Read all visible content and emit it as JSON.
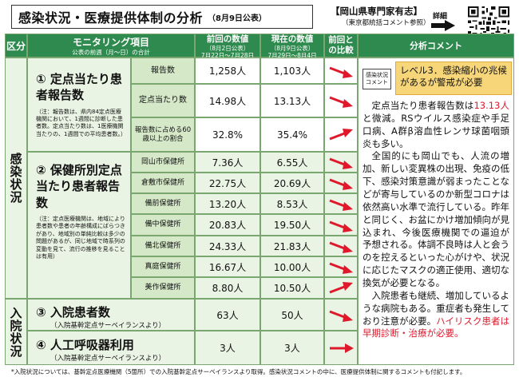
{
  "header": {
    "title": "感染状況・医療提供体制の分析",
    "date_note": "（8月9日公表）",
    "source_line1": "【岡山県専門家有志】",
    "source_line2": "（東京都統括コメント参照）",
    "detail_label": "詳細"
  },
  "columns": {
    "category": "区分",
    "item": "モニタリング項目",
    "item_sub": "公表の前週（月～日）の合計",
    "prev": "前回の数値",
    "prev_sub1": "（8月2日公表）",
    "prev_sub2": "7月22日～7月28日",
    "curr": "現在の数値",
    "curr_sub1": "（8月9日公表）",
    "curr_sub2": "7月29日～8月4日",
    "compare": "前回との比較",
    "comment": "分析コメント"
  },
  "sections": {
    "infection": "感染状況",
    "hospital": "入院状況"
  },
  "items": {
    "item1_title": "① 定点当たり患者報告数",
    "item1_note": "（注：報告数は、県内84定点医療機関において、1週間に診断した患者数。定点当たり数は、1医療機関当たりの、1週間での平均患者数。）",
    "item2_title": "② 保健所別定点当たり患者報告数",
    "item2_note": "（注：定点医療機関は、地域により患者数や患者の年齢構成にばらつきがあり、地域別の単純比較は多少の問題があるが、同じ地域で時系列の変動を見て、流行の推移を見ることは有用）",
    "item3_title": "③ 入院患者数",
    "item3_note": "（入院基幹定点サーベイランスより）",
    "item4_title": "④ 人工呼吸器利用",
    "item4_note": "（入院基幹定点サーベイランスより）"
  },
  "rows1": [
    {
      "label": "報告数",
      "prev": "1,258人",
      "curr": "1,103人",
      "trend": "down"
    },
    {
      "label": "定点当たり数",
      "prev": "14.98人",
      "curr": "13.13人",
      "trend": "down"
    },
    {
      "label": "報告数に占める60歳以上の割合",
      "prev": "32.8%",
      "curr": "35.4%",
      "trend": "up"
    }
  ],
  "rows2": [
    {
      "label": "岡山市保健所",
      "prev": "7.36人",
      "curr": "6.55人",
      "trend": "down"
    },
    {
      "label": "倉敷市保健所",
      "prev": "22.75人",
      "curr": "20.69人",
      "trend": "down"
    },
    {
      "label": "備前保健所",
      "prev": "13.20人",
      "curr": "8.53人",
      "trend": "down"
    },
    {
      "label": "備中保健所",
      "prev": "20.83人",
      "curr": "19.50人",
      "trend": "down"
    },
    {
      "label": "備北保健所",
      "prev": "24.33人",
      "curr": "21.83人",
      "trend": "down"
    },
    {
      "label": "真庭保健所",
      "prev": "16.67人",
      "curr": "10.00人",
      "trend": "down"
    },
    {
      "label": "美作保健所",
      "prev": "8.80人",
      "curr": "10.50人",
      "trend": "up"
    }
  ],
  "row3": {
    "prev": "63人",
    "curr": "50人",
    "trend": "down"
  },
  "row4": {
    "prev": "3人",
    "curr": "3人",
    "trend": "flat"
  },
  "analysis": {
    "level_tag": "感染状況コメント",
    "level_text": "レベル3．感染縮小の兆候があるが警戒が必要",
    "p1_a": "定点当たり患者報告数は",
    "p1_red": "13.13人",
    "p1_b": "と微減。RSウイルス感染症や手足口病、A群β溶血性レンサ球菌咽頭炎も多い。",
    "p2": "全国的にも岡山でも、人流の増加、新しい変異株の出現、免疫の低下、感染対策意識が弱まったことなどが寄与しているのか新型コロナは依然高い水準で流行している。昨年と同じく、お盆にかけ増加傾向が見込まれ、今後医療機関での逼迫が予想される。体調不良時は人と会うのを控えるといった心がけや、状況に応じたマスクの適正使用、適切な換気が必要となる。",
    "p3_a": "入院患者も継続、増加しているような病院もある。重症者も発生しており注意が必要。",
    "p3_red": "ハイリスク患者は早期診断・治療が必要。"
  },
  "footnote": "*入院状況については、基幹定点医療機関（5箇所）での入院基幹定点サーベイランスより取得。感染状況コメントの中に、医療提供体制に関するコメントも付記します。",
  "colors": {
    "header_green": "#2e8a4e",
    "light_green": "#eaf4e4",
    "arrow_red": "#e0182b",
    "level_yellow": "#f7d67a"
  }
}
